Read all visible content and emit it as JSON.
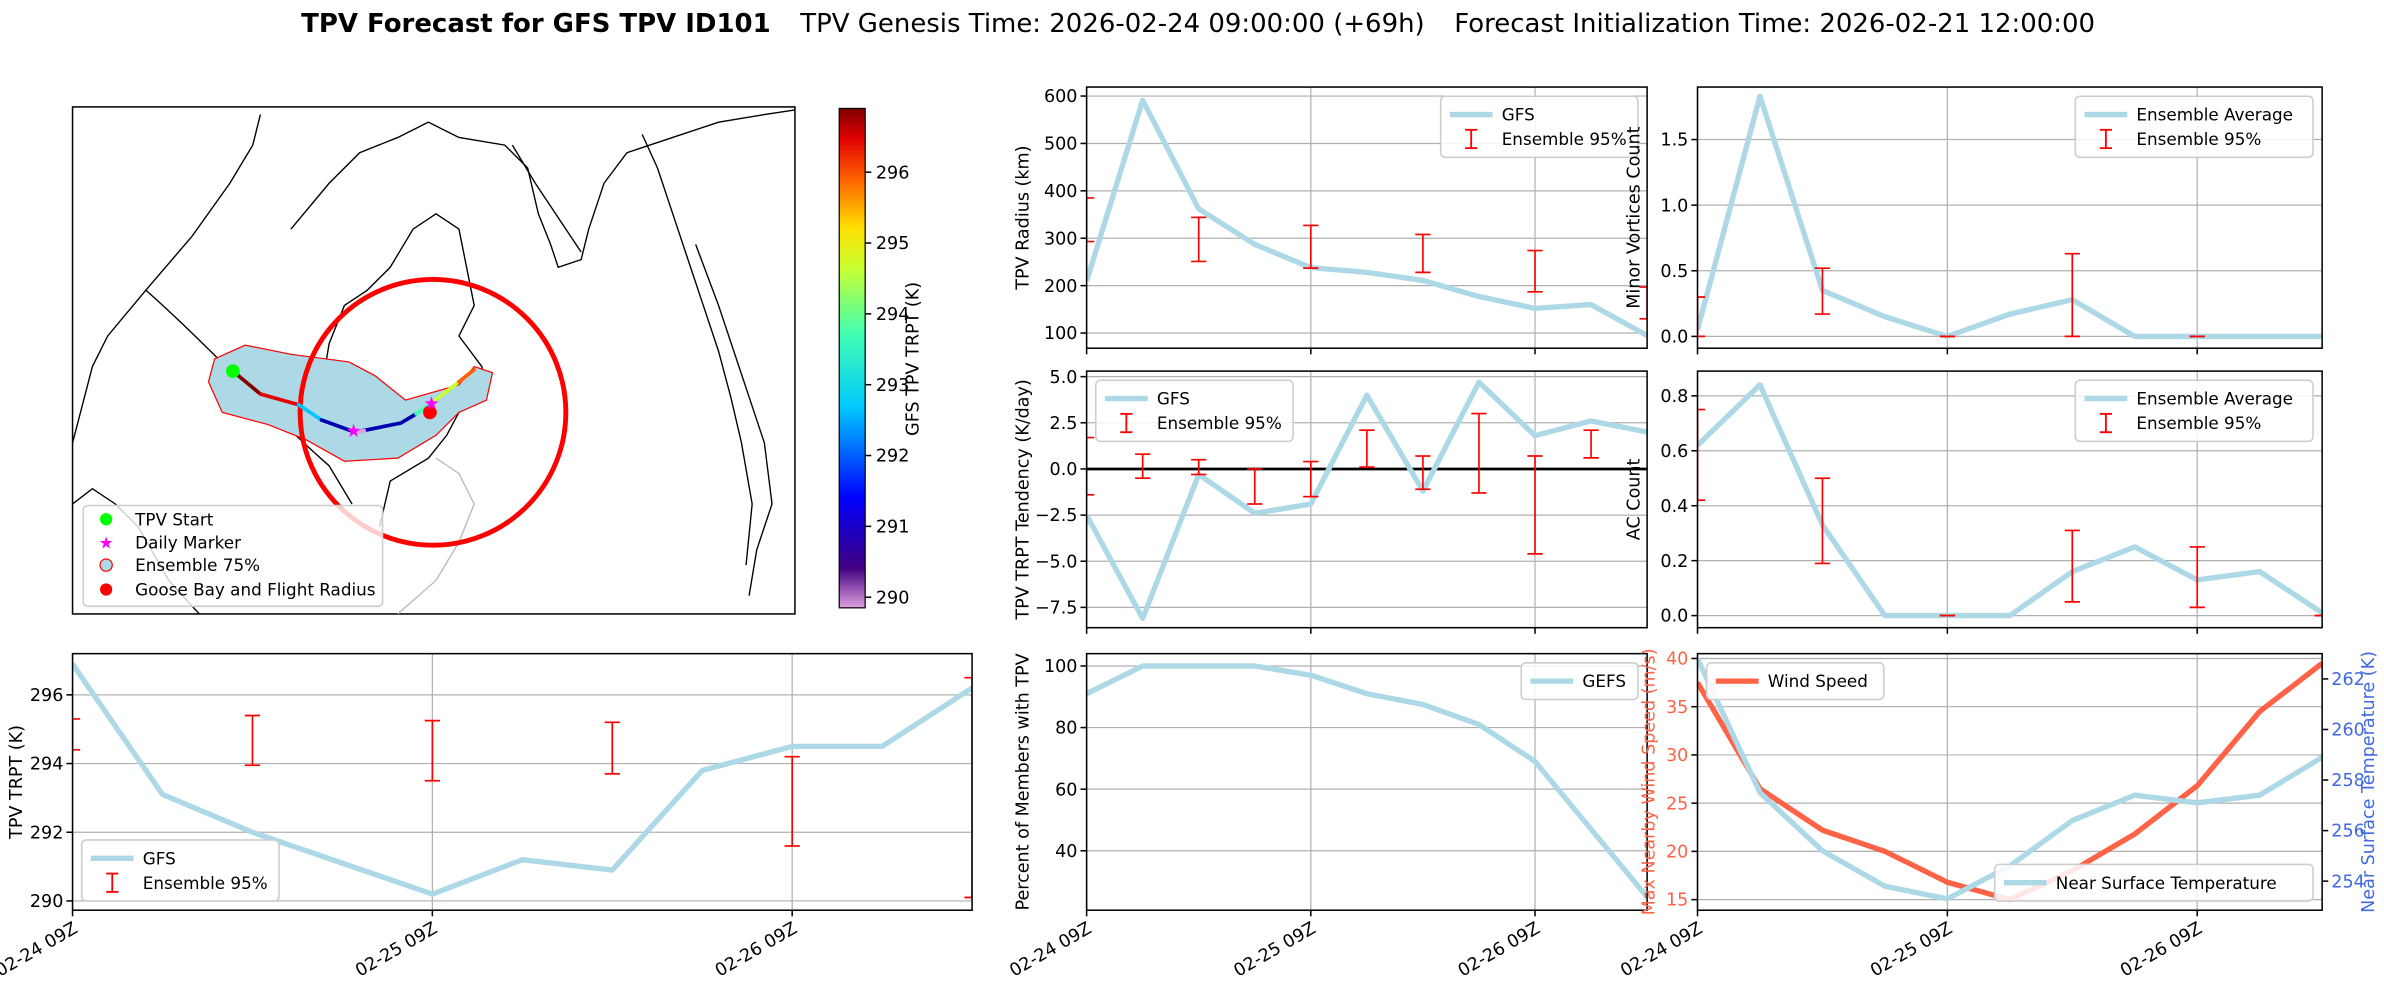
{
  "title": {
    "main": "TPV Forecast for GFS TPV ID101",
    "genesis": "TPV Genesis Time: 2026-02-24 09:00:00 (+69h)",
    "init": "Forecast Initialization Time: 2026-02-21 12:00:00"
  },
  "colors": {
    "gfs_line": "#add8e6",
    "ensemble_error": "#ff0000",
    "wind": "#ff6347",
    "temperature_axis": "#4169e1",
    "zero_line": "#000000"
  },
  "map": {
    "legend": [
      "TPV Start",
      "Daily Marker",
      "Ensemble 75%",
      "Goose Bay and Flight Radius"
    ],
    "legend_icons": [
      "green-circle",
      "magenta-star",
      "lightblue-circle-red-edge",
      "red-circle"
    ],
    "colorbar": {
      "label": "GFS TPV TRPT (K)",
      "range": [
        289.85,
        296.9
      ],
      "ticks": [
        "290",
        "291",
        "292",
        "293",
        "294",
        "295",
        "296"
      ],
      "colormap": "jet"
    }
  },
  "chart_data": [
    {
      "id": "radius",
      "type": "line",
      "ylabel": "TPV Radius (km)",
      "x": [
        "2026-02-24T09:00Z",
        "2026-02-24T15:00Z",
        "2026-02-24T21:00Z",
        "2026-02-25T03:00Z",
        "2026-02-25T09:00Z",
        "2026-02-25T15:00Z",
        "2026-02-25T21:00Z",
        "2026-02-26T03:00Z",
        "2026-02-26T09:00Z",
        "2026-02-26T15:00Z",
        "2026-02-26T21:00Z"
      ],
      "xlim": [
        "2026-02-24T09:00Z",
        "2026-02-26T21:00Z"
      ],
      "xticks": [
        "2026-02-24T09:00Z",
        "2026-02-25T09:00Z",
        "2026-02-26T09:00Z"
      ],
      "xtick_labels": [
        "02-24 09Z",
        "02-25 09Z",
        "02-26 09Z"
      ],
      "show_xtick_labels": false,
      "ylim": [
        68,
        619
      ],
      "yticks": [
        100,
        200,
        300,
        400,
        500,
        600
      ],
      "ytick_labels": [
        "100",
        "200",
        "300",
        "400",
        "500",
        "600"
      ],
      "grid": true,
      "series": [
        {
          "name": "GFS",
          "values": [
            210,
            591,
            362,
            287,
            238,
            228,
            211,
            177,
            152,
            160,
            95
          ]
        }
      ],
      "errorbars": {
        "name": "Ensemble 95%",
        "low": [
          293,
          null,
          251,
          null,
          237,
          null,
          228,
          null,
          187,
          null,
          130
        ],
        "high": [
          385,
          null,
          344,
          null,
          327,
          null,
          308,
          null,
          274,
          null,
          197
        ]
      },
      "legend": "upper right"
    },
    {
      "id": "tendency",
      "type": "line",
      "ylabel": "TPV TRPT Tendency (K/day)",
      "x": [
        "2026-02-24T09:00Z",
        "2026-02-24T15:00Z",
        "2026-02-24T21:00Z",
        "2026-02-25T03:00Z",
        "2026-02-25T09:00Z",
        "2026-02-25T15:00Z",
        "2026-02-25T21:00Z",
        "2026-02-26T03:00Z",
        "2026-02-26T09:00Z",
        "2026-02-26T15:00Z",
        "2026-02-26T21:00Z"
      ],
      "xlim": [
        "2026-02-24T09:00Z",
        "2026-02-26T21:00Z"
      ],
      "xticks": [
        "2026-02-24T09:00Z",
        "2026-02-25T09:00Z",
        "2026-02-26T09:00Z"
      ],
      "xtick_labels": [
        "02-24 09Z",
        "02-25 09Z",
        "02-26 09Z"
      ],
      "show_xtick_labels": false,
      "ylim": [
        -8.6,
        5.3
      ],
      "yticks": [
        -7.5,
        -5,
        -2.5,
        0,
        2.5,
        5
      ],
      "ytick_labels": [
        "−7.5",
        "−5.0",
        "−2.5",
        "0.0",
        "2.5",
        "5.0"
      ],
      "grid": true,
      "zero_line": true,
      "series": [
        {
          "name": "GFS",
          "values": [
            -2.5,
            -8.1,
            -0.3,
            -2.4,
            -1.9,
            4.0,
            -1.2,
            4.7,
            1.8,
            2.6,
            2.0
          ]
        }
      ],
      "errorbars": {
        "name": "Ensemble 95%",
        "low": [
          -1.4,
          -0.5,
          -0.3,
          -1.9,
          -1.5,
          0.1,
          -1.1,
          -1.3,
          -4.6,
          0.6,
          null
        ],
        "high": [
          1.7,
          0.8,
          0.5,
          0.0,
          0.4,
          2.1,
          0.7,
          3.0,
          0.7,
          2.1,
          null
        ]
      },
      "legend": "upper left"
    },
    {
      "id": "percent",
      "type": "line",
      "ylabel": "Percent of Members with TPV",
      "x": [
        "2026-02-24T09:00Z",
        "2026-02-24T15:00Z",
        "2026-02-24T21:00Z",
        "2026-02-25T03:00Z",
        "2026-02-25T09:00Z",
        "2026-02-25T15:00Z",
        "2026-02-25T21:00Z",
        "2026-02-26T03:00Z",
        "2026-02-26T09:00Z",
        "2026-02-26T15:00Z",
        "2026-02-26T21:00Z"
      ],
      "xlim": [
        "2026-02-24T09:00Z",
        "2026-02-26T21:00Z"
      ],
      "xticks": [
        "2026-02-24T09:00Z",
        "2026-02-25T09:00Z",
        "2026-02-26T09:00Z"
      ],
      "xtick_labels": [
        "02-24 09Z",
        "02-25 09Z",
        "02-26 09Z"
      ],
      "show_xtick_labels": true,
      "ylim": [
        20.7,
        104
      ],
      "yticks": [
        40,
        60,
        80,
        100
      ],
      "ytick_labels": [
        "40",
        "60",
        "80",
        "100"
      ],
      "grid": true,
      "series": [
        {
          "name": "GEFS",
          "values": [
            91,
            100,
            100,
            100,
            97,
            91,
            87.5,
            81,
            69,
            47,
            25
          ]
        }
      ],
      "legend": "upper right"
    },
    {
      "id": "minor-vortices",
      "type": "line",
      "ylabel": "Minor Vortices Count",
      "x": [
        "2026-02-24T09:00Z",
        "2026-02-24T15:00Z",
        "2026-02-24T21:00Z",
        "2026-02-25T03:00Z",
        "2026-02-25T09:00Z",
        "2026-02-25T15:00Z",
        "2026-02-25T21:00Z",
        "2026-02-26T03:00Z",
        "2026-02-26T09:00Z",
        "2026-02-26T15:00Z",
        "2026-02-26T21:00Z"
      ],
      "xlim": [
        "2026-02-24T09:00Z",
        "2026-02-26T21:00Z"
      ],
      "xticks": [
        "2026-02-24T09:00Z",
        "2026-02-25T09:00Z",
        "2026-02-26T09:00Z"
      ],
      "xtick_labels": [
        "02-24 09Z",
        "02-25 09Z",
        "02-26 09Z"
      ],
      "show_xtick_labels": false,
      "ylim": [
        -0.09,
        1.9
      ],
      "yticks": [
        0,
        0.5,
        1,
        1.5
      ],
      "ytick_labels": [
        "0.0",
        "0.5",
        "1.0",
        "1.5"
      ],
      "grid": true,
      "series": [
        {
          "name": "Ensemble Average",
          "values": [
            0.05,
            1.83,
            0.35,
            0.15,
            0,
            0.17,
            0.28,
            0,
            0,
            0,
            0
          ]
        }
      ],
      "errorbars": {
        "name": "Ensemble 95%",
        "low": [
          0,
          null,
          0.17,
          null,
          0,
          null,
          0,
          null,
          0,
          null,
          null
        ],
        "high": [
          0.3,
          null,
          0.52,
          null,
          0,
          null,
          0.63,
          null,
          0,
          null,
          null
        ]
      },
      "legend": "upper right"
    },
    {
      "id": "ac-count",
      "type": "line",
      "ylabel": "AC Count",
      "x": [
        "2026-02-24T09:00Z",
        "2026-02-24T15:00Z",
        "2026-02-24T21:00Z",
        "2026-02-25T03:00Z",
        "2026-02-25T09:00Z",
        "2026-02-25T15:00Z",
        "2026-02-25T21:00Z",
        "2026-02-26T03:00Z",
        "2026-02-26T09:00Z",
        "2026-02-26T15:00Z",
        "2026-02-26T21:00Z"
      ],
      "xlim": [
        "2026-02-24T09:00Z",
        "2026-02-26T21:00Z"
      ],
      "xticks": [
        "2026-02-24T09:00Z",
        "2026-02-25T09:00Z",
        "2026-02-26T09:00Z"
      ],
      "xtick_labels": [
        "02-24 09Z",
        "02-25 09Z",
        "02-26 09Z"
      ],
      "show_xtick_labels": false,
      "ylim": [
        -0.044,
        0.89
      ],
      "yticks": [
        0,
        0.2,
        0.4,
        0.6,
        0.8
      ],
      "ytick_labels": [
        "0.0",
        "0.2",
        "0.4",
        "0.6",
        "0.8"
      ],
      "grid": true,
      "series": [
        {
          "name": "Ensemble Average",
          "values": [
            0.62,
            0.84,
            0.33,
            0,
            0,
            0,
            0.16,
            0.25,
            0.13,
            0.16,
            0.01
          ]
        }
      ],
      "errorbars": {
        "name": "Ensemble 95%",
        "low": [
          0.42,
          null,
          0.19,
          null,
          0,
          null,
          0.05,
          null,
          0.03,
          null,
          0
        ],
        "high": [
          0.75,
          null,
          0.5,
          null,
          0,
          null,
          0.31,
          null,
          0.25,
          null,
          0
        ]
      },
      "legend": "upper right"
    },
    {
      "id": "wind-temp",
      "type": "line",
      "ylabel": "Max Nearby Wind Speed (m/s)",
      "ylabel2": "Near Surface Temperature (K)",
      "x": [
        "2026-02-24T09:00Z",
        "2026-02-24T15:00Z",
        "2026-02-24T21:00Z",
        "2026-02-25T03:00Z",
        "2026-02-25T09:00Z",
        "2026-02-25T15:00Z",
        "2026-02-25T21:00Z",
        "2026-02-26T03:00Z",
        "2026-02-26T09:00Z",
        "2026-02-26T15:00Z",
        "2026-02-26T21:00Z"
      ],
      "xlim": [
        "2026-02-24T09:00Z",
        "2026-02-26T21:00Z"
      ],
      "xticks": [
        "2026-02-24T09:00Z",
        "2026-02-25T09:00Z",
        "2026-02-26T09:00Z"
      ],
      "xtick_labels": [
        "02-24 09Z",
        "02-25 09Z",
        "02-26 09Z"
      ],
      "show_xtick_labels": true,
      "ylim": [
        13.9,
        40.5
      ],
      "yticks": [
        15,
        20,
        25,
        30,
        35,
        40
      ],
      "ytick_labels": [
        "15",
        "20",
        "25",
        "30",
        "35",
        "40"
      ],
      "ylim2": [
        252.85,
        263.0
      ],
      "yticks2": [
        254,
        256,
        258,
        260,
        262
      ],
      "ytick_labels2": [
        "254",
        "256",
        "258",
        "260",
        "262"
      ],
      "grid": true,
      "series": [
        {
          "name": "Wind Speed",
          "values": [
            37.5,
            26.5,
            22.2,
            20.0,
            16.8,
            15.0,
            18.0,
            21.8,
            26.8,
            34.5,
            39.5
          ]
        }
      ],
      "series2": [
        {
          "name": "Near Surface Temperature",
          "values": [
            262.8,
            257.5,
            255.2,
            253.8,
            253.3,
            254.6,
            256.4,
            257.4,
            257.1,
            257.4,
            258.9
          ]
        }
      ],
      "legend": "upper left",
      "legend2": "lower right"
    },
    {
      "id": "trpt",
      "type": "line",
      "ylabel": "TPV TRPT (K)",
      "x": [
        "2026-02-24T09:00Z",
        "2026-02-24T15:00Z",
        "2026-02-24T21:00Z",
        "2026-02-25T03:00Z",
        "2026-02-25T09:00Z",
        "2026-02-25T15:00Z",
        "2026-02-25T21:00Z",
        "2026-02-26T03:00Z",
        "2026-02-26T09:00Z",
        "2026-02-26T15:00Z",
        "2026-02-26T21:00Z"
      ],
      "xlim": [
        "2026-02-24T09:00Z",
        "2026-02-26T21:00Z"
      ],
      "xticks": [
        "2026-02-24T09:00Z",
        "2026-02-25T09:00Z",
        "2026-02-26T09:00Z"
      ],
      "xtick_labels": [
        "02-24 09Z",
        "02-25 09Z",
        "02-26 09Z"
      ],
      "show_xtick_labels": true,
      "ylim": [
        289.73,
        297.2
      ],
      "yticks": [
        290,
        292,
        294,
        296
      ],
      "ytick_labels": [
        "290",
        "292",
        "294",
        "296"
      ],
      "grid": true,
      "series": [
        {
          "name": "GFS",
          "values": [
            296.9,
            293.1,
            292.0,
            291.1,
            290.2,
            291.2,
            290.9,
            293.8,
            294.5,
            294.5,
            296.2
          ]
        }
      ],
      "errorbars": {
        "name": "Ensemble 95%",
        "low": [
          294.4,
          null,
          293.95,
          null,
          293.5,
          null,
          293.7,
          null,
          291.6,
          null,
          290.1
        ],
        "high": [
          295.3,
          null,
          295.4,
          null,
          295.25,
          null,
          295.2,
          null,
          294.2,
          null,
          296.5
        ]
      },
      "legend": "lower left"
    }
  ]
}
